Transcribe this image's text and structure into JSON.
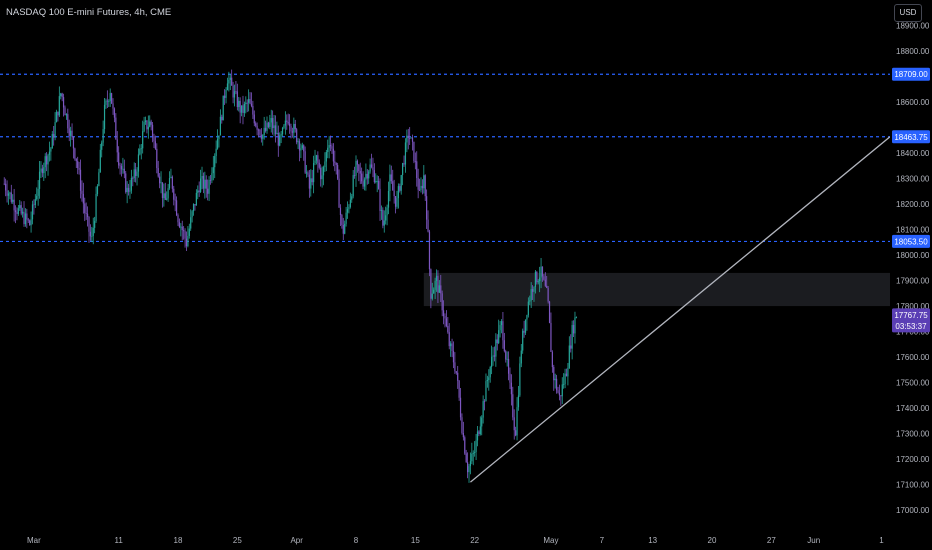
{
  "header": {
    "symbol_title": "NASDAQ 100 E-mini Futures, 4h, CME",
    "currency": "USD"
  },
  "colors": {
    "background": "#000000",
    "axis_text": "#b2b5be",
    "level_line": "#2962ff",
    "level_label_bg": "#2962ff",
    "price_label_bg": "#5b3fb5",
    "trendline": "#b2b5be",
    "zone_fill": "#1e1f24",
    "candle_up": "#26a69a",
    "candle_down": "#7e57c2"
  },
  "chart_data": {
    "type": "candlestick",
    "title": "NASDAQ 100 E-mini Futures, 4h, CME",
    "ylim": [
      16930,
      19000
    ],
    "y_ticks": [
      17000,
      17100,
      17200,
      17300,
      17400,
      17500,
      17600,
      17700,
      17800,
      17900,
      18000,
      18100,
      18200,
      18300,
      18400,
      18600,
      18800,
      18900
    ],
    "y_tick_labels": [
      "17000.00",
      "17100.00",
      "17200.00",
      "17300.00",
      "17400.00",
      "17500.00",
      "17600.00",
      "17700.00",
      "17800.00",
      "17900.00",
      "18000.00",
      "18100.00",
      "18200.00",
      "18300.00",
      "18400.00",
      "18600.00",
      "18800.00",
      "18900.00"
    ],
    "x_ticks": [
      {
        "label": "Mar",
        "day": 0
      },
      {
        "label": "11",
        "day": 10
      },
      {
        "label": "18",
        "day": 17
      },
      {
        "label": "25",
        "day": 24
      },
      {
        "label": "Apr",
        "day": 31
      },
      {
        "label": "8",
        "day": 38
      },
      {
        "label": "15",
        "day": 45
      },
      {
        "label": "22",
        "day": 52
      },
      {
        "label": "May",
        "day": 61
      },
      {
        "label": "7",
        "day": 67
      },
      {
        "label": "13",
        "day": 73
      },
      {
        "label": "20",
        "day": 80
      },
      {
        "label": "27",
        "day": 87
      },
      {
        "label": "Jun",
        "day": 92
      },
      {
        "label": "1",
        "day": 100
      }
    ],
    "x_range_days": [
      -4,
      101
    ],
    "horizontal_levels": [
      {
        "price": 18709.0,
        "label": "18709.00"
      },
      {
        "price": 18463.75,
        "label": "18463.75"
      },
      {
        "price": 18053.5,
        "label": "18053.50"
      }
    ],
    "zone": {
      "from_day": 46,
      "to_day": 100,
      "low": 17800,
      "high": 17930
    },
    "trendline": {
      "from": {
        "day": 51.5,
        "price": 17110
      },
      "to": {
        "day": 100,
        "price": 18463.75
      }
    },
    "current_price": {
      "price": 17767.75,
      "label": "17767.75",
      "countdown": "03:53:37"
    },
    "candle_path": [
      [
        -3.5,
        18280
      ],
      [
        -2,
        18180
      ],
      [
        -0.5,
        18120
      ],
      [
        1,
        18350
      ],
      [
        2,
        18420
      ],
      [
        3.2,
        18640
      ],
      [
        4,
        18520
      ],
      [
        5,
        18380
      ],
      [
        6,
        18170
      ],
      [
        6.8,
        18050
      ],
      [
        7.5,
        18260
      ],
      [
        8.3,
        18560
      ],
      [
        9,
        18650
      ],
      [
        10,
        18380
      ],
      [
        11,
        18250
      ],
      [
        12,
        18320
      ],
      [
        13,
        18500
      ],
      [
        13.8,
        18520
      ],
      [
        14.6,
        18350
      ],
      [
        15.4,
        18200
      ],
      [
        16.2,
        18300
      ],
      [
        17,
        18150
      ],
      [
        18,
        18050
      ],
      [
        18.8,
        18180
      ],
      [
        19.6,
        18290
      ],
      [
        20.5,
        18260
      ],
      [
        21.2,
        18380
      ],
      [
        22,
        18520
      ],
      [
        22.8,
        18700
      ],
      [
        23.5,
        18640
      ],
      [
        24.5,
        18560
      ],
      [
        25.3,
        18600
      ],
      [
        26.2,
        18520
      ],
      [
        27,
        18470
      ],
      [
        28,
        18520
      ],
      [
        29,
        18440
      ],
      [
        30,
        18540
      ],
      [
        30.8,
        18480
      ],
      [
        31.6,
        18420
      ],
      [
        32.5,
        18260
      ],
      [
        33.3,
        18380
      ],
      [
        34,
        18300
      ],
      [
        34.8,
        18460
      ],
      [
        35.6,
        18350
      ],
      [
        36.4,
        18080
      ],
      [
        37.2,
        18210
      ],
      [
        38,
        18340
      ],
      [
        38.8,
        18290
      ],
      [
        39.6,
        18350
      ],
      [
        40.4,
        18300
      ],
      [
        41.2,
        18110
      ],
      [
        42,
        18290
      ],
      [
        42.8,
        18200
      ],
      [
        43.6,
        18370
      ],
      [
        44.2,
        18480
      ],
      [
        44.8,
        18400
      ],
      [
        45.5,
        18230
      ],
      [
        46,
        18310
      ],
      [
        46.4,
        18140
      ],
      [
        46.8,
        17850
      ],
      [
        47.5,
        17900
      ],
      [
        48.2,
        17800
      ],
      [
        49,
        17650
      ],
      [
        49.8,
        17550
      ],
      [
        50.6,
        17300
      ],
      [
        51.2,
        17160
      ],
      [
        52,
        17230
      ],
      [
        52.8,
        17380
      ],
      [
        53.6,
        17530
      ],
      [
        54.4,
        17640
      ],
      [
        55.2,
        17730
      ],
      [
        56,
        17520
      ],
      [
        56.8,
        17300
      ],
      [
        57.5,
        17640
      ],
      [
        58.2,
        17800
      ],
      [
        59,
        17900
      ],
      [
        59.8,
        17930
      ],
      [
        60.6,
        17830
      ],
      [
        61.2,
        17540
      ],
      [
        62,
        17440
      ],
      [
        62.8,
        17540
      ],
      [
        63.5,
        17700
      ],
      [
        64,
        17768
      ]
    ]
  },
  "axis": {
    "price_labels_right": true
  }
}
